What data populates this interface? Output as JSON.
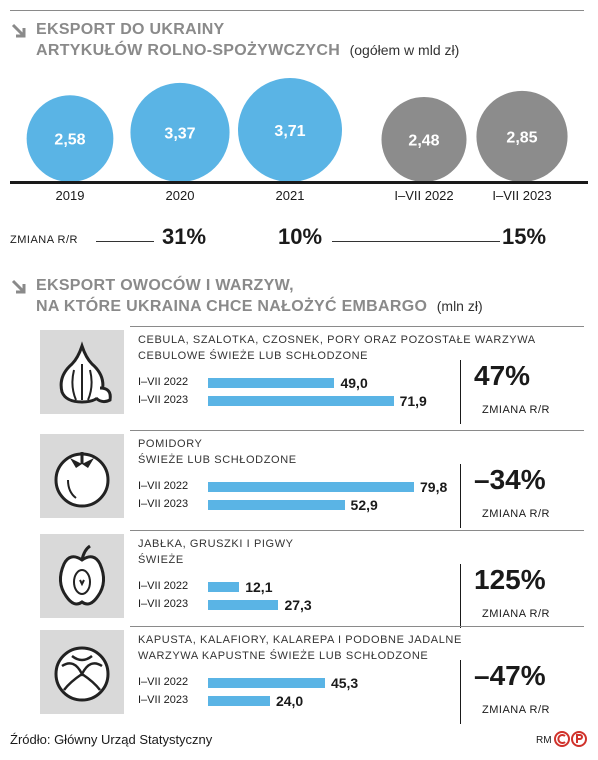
{
  "section1": {
    "title_line1": "EKSPORT DO UKRAINY",
    "title_line2": "ARTYKUŁÓW ROLNO-SPOŻYWCZYCH",
    "unit": "(ogółem w mld zł)"
  },
  "section2": {
    "title_line1": "EKSPORT OWOCÓW I WARZYW,",
    "title_line2": "NA KTÓRE UKRAINA CHCE NAŁOŻYĆ EMBARGO",
    "unit": "(mln zł)"
  },
  "change_label": "ZMIANA R/R",
  "colors": {
    "blue": "#5ab4e5",
    "gray": "#8c8c8c",
    "title": "#8a8a8a"
  },
  "chart_data": [
    {
      "type": "bubble",
      "categories": [
        "2019",
        "2020",
        "2021",
        "I–VII 2022",
        "I–VII 2023"
      ],
      "values": [
        2.58,
        3.37,
        3.71,
        2.48,
        2.85
      ],
      "labels": [
        "2,58",
        "3,37",
        "3,71",
        "2,48",
        "2,85"
      ],
      "colors": [
        "#5ab4e5",
        "#5ab4e5",
        "#5ab4e5",
        "#8c8c8c",
        "#8c8c8c"
      ],
      "changes": [
        "31%",
        "10%",
        "15%"
      ]
    },
    {
      "type": "bar",
      "orientation": "horizontal",
      "series_labels": [
        "I–VII 2022",
        "I–VII 2023"
      ],
      "groups": [
        {
          "name_line1": "CEBULA, SZALOTKA, CZOSNEK, PORY ORAZ POZOSTAŁE WARZYWA",
          "name_line2": "CEBULOWE ŚWIEŻE LUB SCHŁODZONE",
          "icon": "garlic-icon",
          "values": [
            49.0,
            71.9
          ],
          "labels": [
            "49,0",
            "71,9"
          ],
          "change": "47%"
        },
        {
          "name_line1": "POMIDORY",
          "name_line2": "ŚWIEŻE LUB SCHŁODZONE",
          "icon": "tomato-icon",
          "values": [
            79.8,
            52.9
          ],
          "labels": [
            "79,8",
            "52,9"
          ],
          "change": "–34%"
        },
        {
          "name_line1": "JABŁKA, GRUSZKI I PIGWY",
          "name_line2": "ŚWIEŻE",
          "icon": "apple-icon",
          "values": [
            12.1,
            27.3
          ],
          "labels": [
            "12,1",
            "27,3"
          ],
          "change": "125%"
        },
        {
          "name_line1": "KAPUSTA, KALAFIORY, KALAREPA I PODOBNE JADALNE",
          "name_line2": "WARZYWA KAPUSTNE ŚWIEŻE LUB SCHŁODZONE",
          "icon": "cabbage-icon",
          "values": [
            45.3,
            24.0
          ],
          "labels": [
            "45,3",
            "24,0"
          ],
          "change": "–47%"
        }
      ]
    }
  ],
  "source": "Źródło: Główny Urząd Statystyczny",
  "signature": "RM",
  "logo_text": "CP"
}
